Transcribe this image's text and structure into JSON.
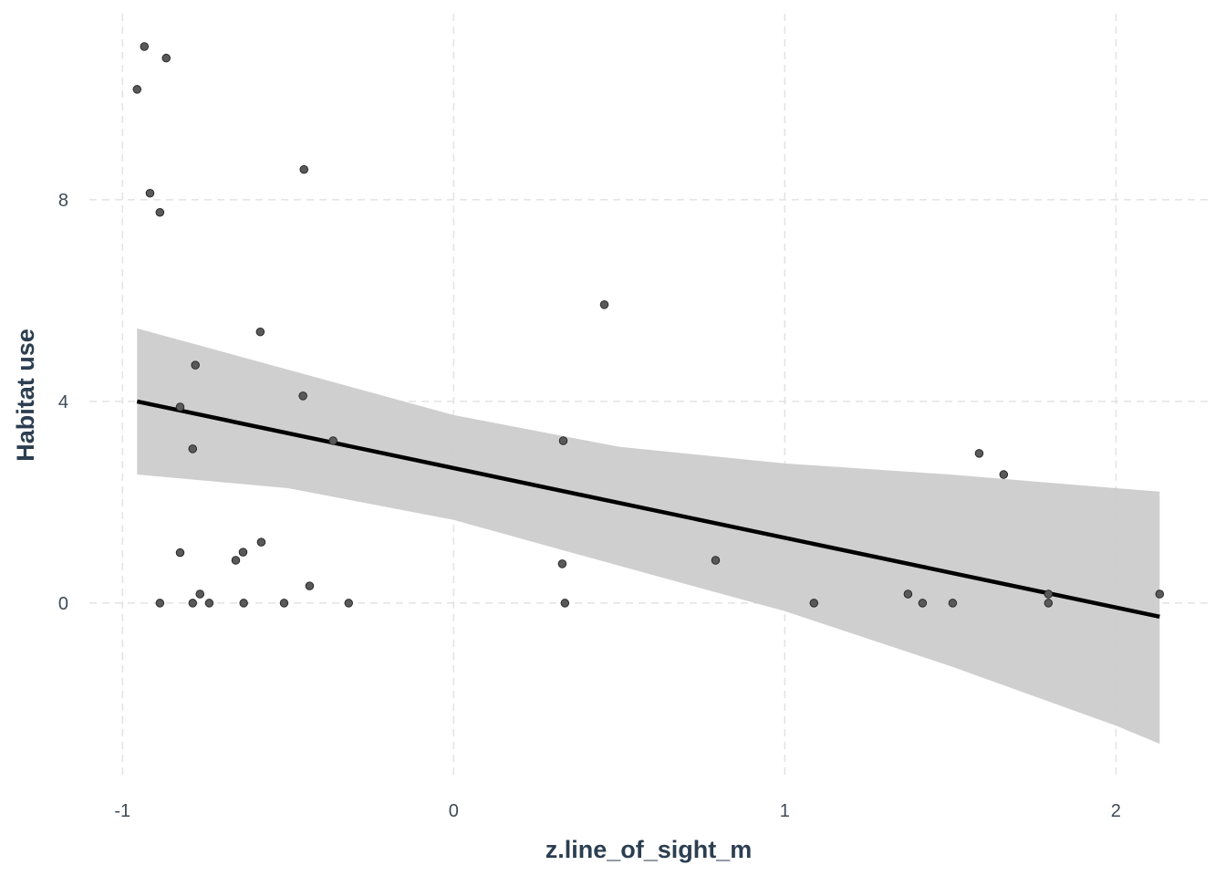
{
  "chart_data": {
    "type": "scatter",
    "title": "",
    "xlabel": "z.line_of_sight_m",
    "ylabel": "Habitat use",
    "xlim": [
      -1.1,
      2.28
    ],
    "ylim": [
      -3.44,
      11.51
    ],
    "x_ticks": [
      -1,
      0,
      1,
      2
    ],
    "x_tick_labels": [
      "-1",
      "0",
      "1",
      "2"
    ],
    "y_ticks": [
      0,
      4,
      8
    ],
    "y_tick_labels": [
      "0",
      "4",
      "8"
    ],
    "grid": true,
    "colors": {
      "points": "#595959",
      "line": "#000000",
      "ribbon": "#cccccc",
      "grid": "#e3e3e3"
    },
    "points": [
      [
        -0.956,
        10.19
      ],
      [
        -0.934,
        11.04
      ],
      [
        -0.868,
        10.81
      ],
      [
        -0.917,
        8.13
      ],
      [
        -0.887,
        7.75
      ],
      [
        -0.452,
        8.6
      ],
      [
        0.455,
        5.92
      ],
      [
        -0.584,
        5.38
      ],
      [
        -0.78,
        4.72
      ],
      [
        -0.455,
        4.11
      ],
      [
        -0.826,
        3.89
      ],
      [
        -0.364,
        3.22
      ],
      [
        -0.788,
        3.06
      ],
      [
        0.331,
        3.22
      ],
      [
        1.587,
        2.97
      ],
      [
        1.661,
        2.55
      ],
      [
        -0.826,
        1.0
      ],
      [
        -0.636,
        1.01
      ],
      [
        -0.581,
        1.21
      ],
      [
        -0.658,
        0.85
      ],
      [
        -0.435,
        0.34
      ],
      [
        0.328,
        0.78
      ],
      [
        0.791,
        0.85
      ],
      [
        -0.766,
        0.18
      ],
      [
        -0.887,
        0
      ],
      [
        -0.788,
        0
      ],
      [
        -0.738,
        0
      ],
      [
        -0.634,
        0
      ],
      [
        -0.512,
        0
      ],
      [
        -0.317,
        0
      ],
      [
        0.336,
        0
      ],
      [
        1.088,
        0
      ],
      [
        1.372,
        0.18
      ],
      [
        1.416,
        0
      ],
      [
        1.507,
        0
      ],
      [
        1.796,
        0.18
      ],
      [
        1.796,
        0
      ],
      [
        2.132,
        0.18
      ]
    ],
    "fit_line": {
      "x": [
        -0.956,
        2.132
      ],
      "y": [
        4.0,
        -0.27
      ]
    },
    "ribbon": {
      "x": [
        -0.956,
        -0.5,
        0,
        0.5,
        1,
        1.5,
        2,
        2.132
      ],
      "upper": [
        5.45,
        4.63,
        3.73,
        3.1,
        2.77,
        2.55,
        2.28,
        2.21
      ],
      "lower": [
        2.55,
        2.28,
        1.65,
        0.74,
        -0.16,
        -1.25,
        -2.43,
        -2.79
      ]
    }
  }
}
